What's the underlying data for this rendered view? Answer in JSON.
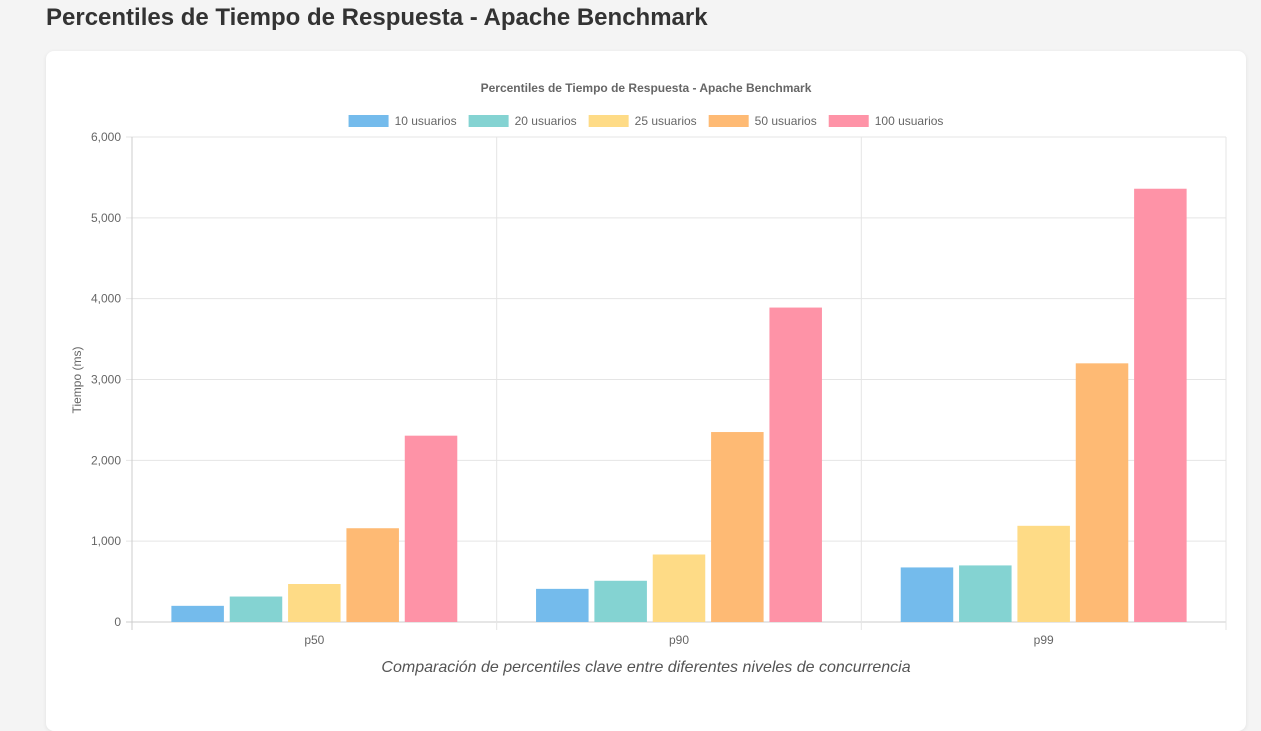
{
  "page": {
    "title": "Percentiles de Tiempo de Respuesta - Apache Benchmark",
    "caption": "Comparación de percentiles clave entre diferentes niveles de concurrencia"
  },
  "chart_data": {
    "type": "bar",
    "title": "Percentiles de Tiempo de Respuesta - Apache Benchmark",
    "xlabel": "",
    "ylabel": "Tiempo (ms)",
    "ylim": [
      0,
      6000
    ],
    "yticks": [
      0,
      1000,
      2000,
      3000,
      4000,
      5000,
      6000
    ],
    "ytick_labels": [
      "0",
      "1,000",
      "2,000",
      "3,000",
      "4,000",
      "5,000",
      "6,000"
    ],
    "grid": true,
    "legend_position": "top-center",
    "categories": [
      "p50",
      "p90",
      "p99"
    ],
    "series": [
      {
        "name": "10 usuarios",
        "color": "#74bbec",
        "values": [
          200,
          410,
          675
        ]
      },
      {
        "name": "20 usuarios",
        "color": "#84d3d2",
        "values": [
          315,
          510,
          700
        ]
      },
      {
        "name": "25 usuarios",
        "color": "#fedb86",
        "values": [
          470,
          835,
          1190
        ]
      },
      {
        "name": "50 usuarios",
        "color": "#feba74",
        "values": [
          1160,
          2350,
          3200
        ]
      },
      {
        "name": "100 usuarios",
        "color": "#fe93a7",
        "values": [
          2305,
          3890,
          5360
        ]
      }
    ]
  }
}
